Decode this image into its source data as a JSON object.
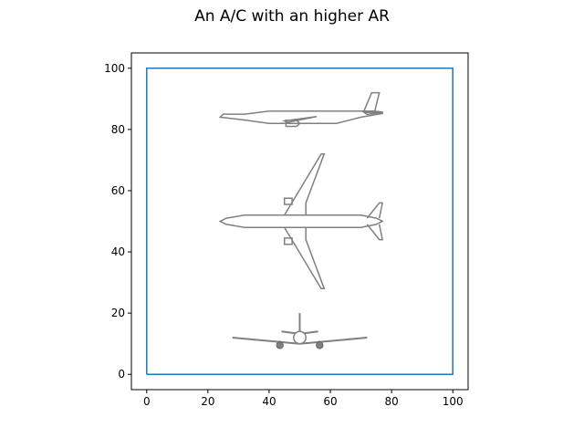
{
  "chart_data": {
    "type": "line",
    "title": "An A/C with an higher AR",
    "xlabel": "",
    "ylabel": "",
    "xlim": [
      -5,
      105
    ],
    "ylim": [
      -5,
      105
    ],
    "x_ticks": [
      0,
      20,
      40,
      60,
      80,
      100
    ],
    "y_ticks": [
      0,
      20,
      40,
      60,
      80,
      100
    ],
    "grid": false,
    "colors": {
      "frame": "#1f77b4",
      "aircraft": "#808080",
      "axes": "#000000"
    },
    "series": [
      {
        "x": [
          0,
          100,
          100,
          0,
          0
        ],
        "y": [
          0,
          0,
          100,
          100,
          0
        ]
      }
    ],
    "aircraft_views": {
      "side": {
        "fuselage": [
          [
            32,
            85
          ],
          [
            40,
            86
          ],
          [
            65,
            86
          ],
          [
            74,
            86
          ],
          [
            77,
            85.7
          ],
          [
            77,
            85.2
          ],
          [
            70,
            84
          ],
          [
            62,
            82
          ],
          [
            40,
            82
          ],
          [
            31,
            83.2
          ],
          [
            24,
            84
          ],
          [
            25,
            85
          ]
        ],
        "tail_fin": [
          [
            71,
            86
          ],
          [
            73.5,
            92
          ],
          [
            76,
            92
          ],
          [
            74.5,
            86
          ]
        ],
        "h_stabilizer": [
          [
            71,
            85.6
          ],
          [
            77,
            85.6
          ],
          [
            72,
            84.9
          ]
        ],
        "wing": [
          [
            45,
            82.8
          ],
          [
            55.5,
            84.2
          ],
          [
            46,
            82.3
          ]
        ],
        "engine": [
          [
            45.5,
            83
          ],
          [
            49,
            83
          ],
          [
            50,
            82
          ],
          [
            49,
            81
          ],
          [
            45.5,
            81
          ]
        ]
      },
      "top": {
        "fuselage": [
          [
            32,
            52
          ],
          [
            40,
            52
          ],
          [
            63,
            52
          ],
          [
            70,
            52
          ],
          [
            75,
            51
          ],
          [
            77,
            50
          ],
          [
            75,
            49
          ],
          [
            70,
            48
          ],
          [
            63,
            48
          ],
          [
            40,
            48
          ],
          [
            32,
            48
          ],
          [
            26,
            49
          ],
          [
            24,
            50
          ],
          [
            26,
            51
          ]
        ],
        "wing_top": [
          [
            45,
            52
          ],
          [
            57,
            72
          ],
          [
            58,
            72
          ],
          [
            52,
            56
          ],
          [
            52,
            52
          ]
        ],
        "wing_bottom": [
          [
            45,
            48
          ],
          [
            57,
            28
          ],
          [
            58,
            28
          ],
          [
            52,
            44
          ],
          [
            52,
            48
          ]
        ],
        "tail_top": [
          [
            72,
            51
          ],
          [
            76,
            56
          ],
          [
            77,
            56
          ],
          [
            76,
            51
          ]
        ],
        "tail_bottom": [
          [
            72,
            49
          ],
          [
            76,
            44
          ],
          [
            77,
            44
          ],
          [
            76,
            49
          ]
        ],
        "engine_top": [
          [
            45,
            55.5
          ],
          [
            47.5,
            55.5
          ],
          [
            47.5,
            57.5
          ],
          [
            45,
            57.5
          ]
        ],
        "engine_bottom": [
          [
            45,
            42.5
          ],
          [
            47.5,
            42.5
          ],
          [
            47.5,
            44.5
          ],
          [
            45,
            44.5
          ]
        ]
      },
      "front": {
        "wing": [
          [
            28,
            12
          ],
          [
            50,
            10
          ],
          [
            72,
            12
          ]
        ],
        "fin": [
          [
            50,
            13
          ],
          [
            50,
            20
          ]
        ],
        "h_stabilizer": [
          [
            44,
            14
          ],
          [
            50,
            13.2
          ],
          [
            56,
            14
          ]
        ],
        "fuselage_center": [
          50,
          12
        ],
        "fuselage_radius": 2,
        "engines": [
          [
            43.5,
            9.5
          ],
          [
            56.5,
            9.5
          ]
        ],
        "engine_radius": 1.1,
        "gear": [
          [
            43.5,
            11
          ],
          [
            43.5,
            9.5
          ],
          [
            56.5,
            11
          ],
          [
            56.5,
            9.5
          ]
        ]
      }
    }
  }
}
